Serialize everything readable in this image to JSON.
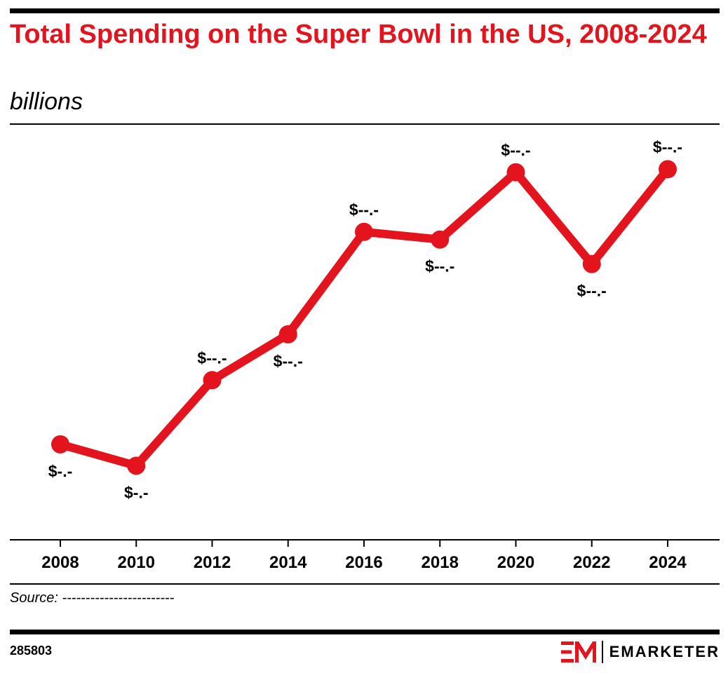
{
  "header": {
    "title": "Total Spending on the Super Bowl in the US, 2008-2024",
    "subtitle": "billions"
  },
  "chart_data": {
    "type": "line",
    "title": "Total Spending on the Super Bowl in the US, 2008-2024",
    "subtitle": "billions",
    "xlabel": "",
    "ylabel": "",
    "x": [
      "2008",
      "2010",
      "2012",
      "2014",
      "2016",
      "2018",
      "2020",
      "2022",
      "2024"
    ],
    "series": [
      {
        "values": [
          10.1,
          8.7,
          14.3,
          17.3,
          24.0,
          23.5,
          27.9,
          21.9,
          28.1
        ],
        "labels": [
          "$-.-",
          "$-.-",
          "$--.-",
          "$--.-",
          "$--.-",
          "$--.-",
          "$--.-",
          "$--.-",
          "$--.-"
        ],
        "label_position": [
          "below",
          "below",
          "above",
          "below",
          "above",
          "below",
          "above",
          "below",
          "above"
        ],
        "color": "#e3141e"
      }
    ],
    "ylim": [
      5,
      30
    ],
    "grid": false,
    "legend": "none",
    "y_axis_visible": false
  },
  "footer": {
    "source": "Source: ------------------------",
    "chart_id": "285803",
    "brand": "EMARKETER",
    "brand_color": "#e3141e"
  }
}
